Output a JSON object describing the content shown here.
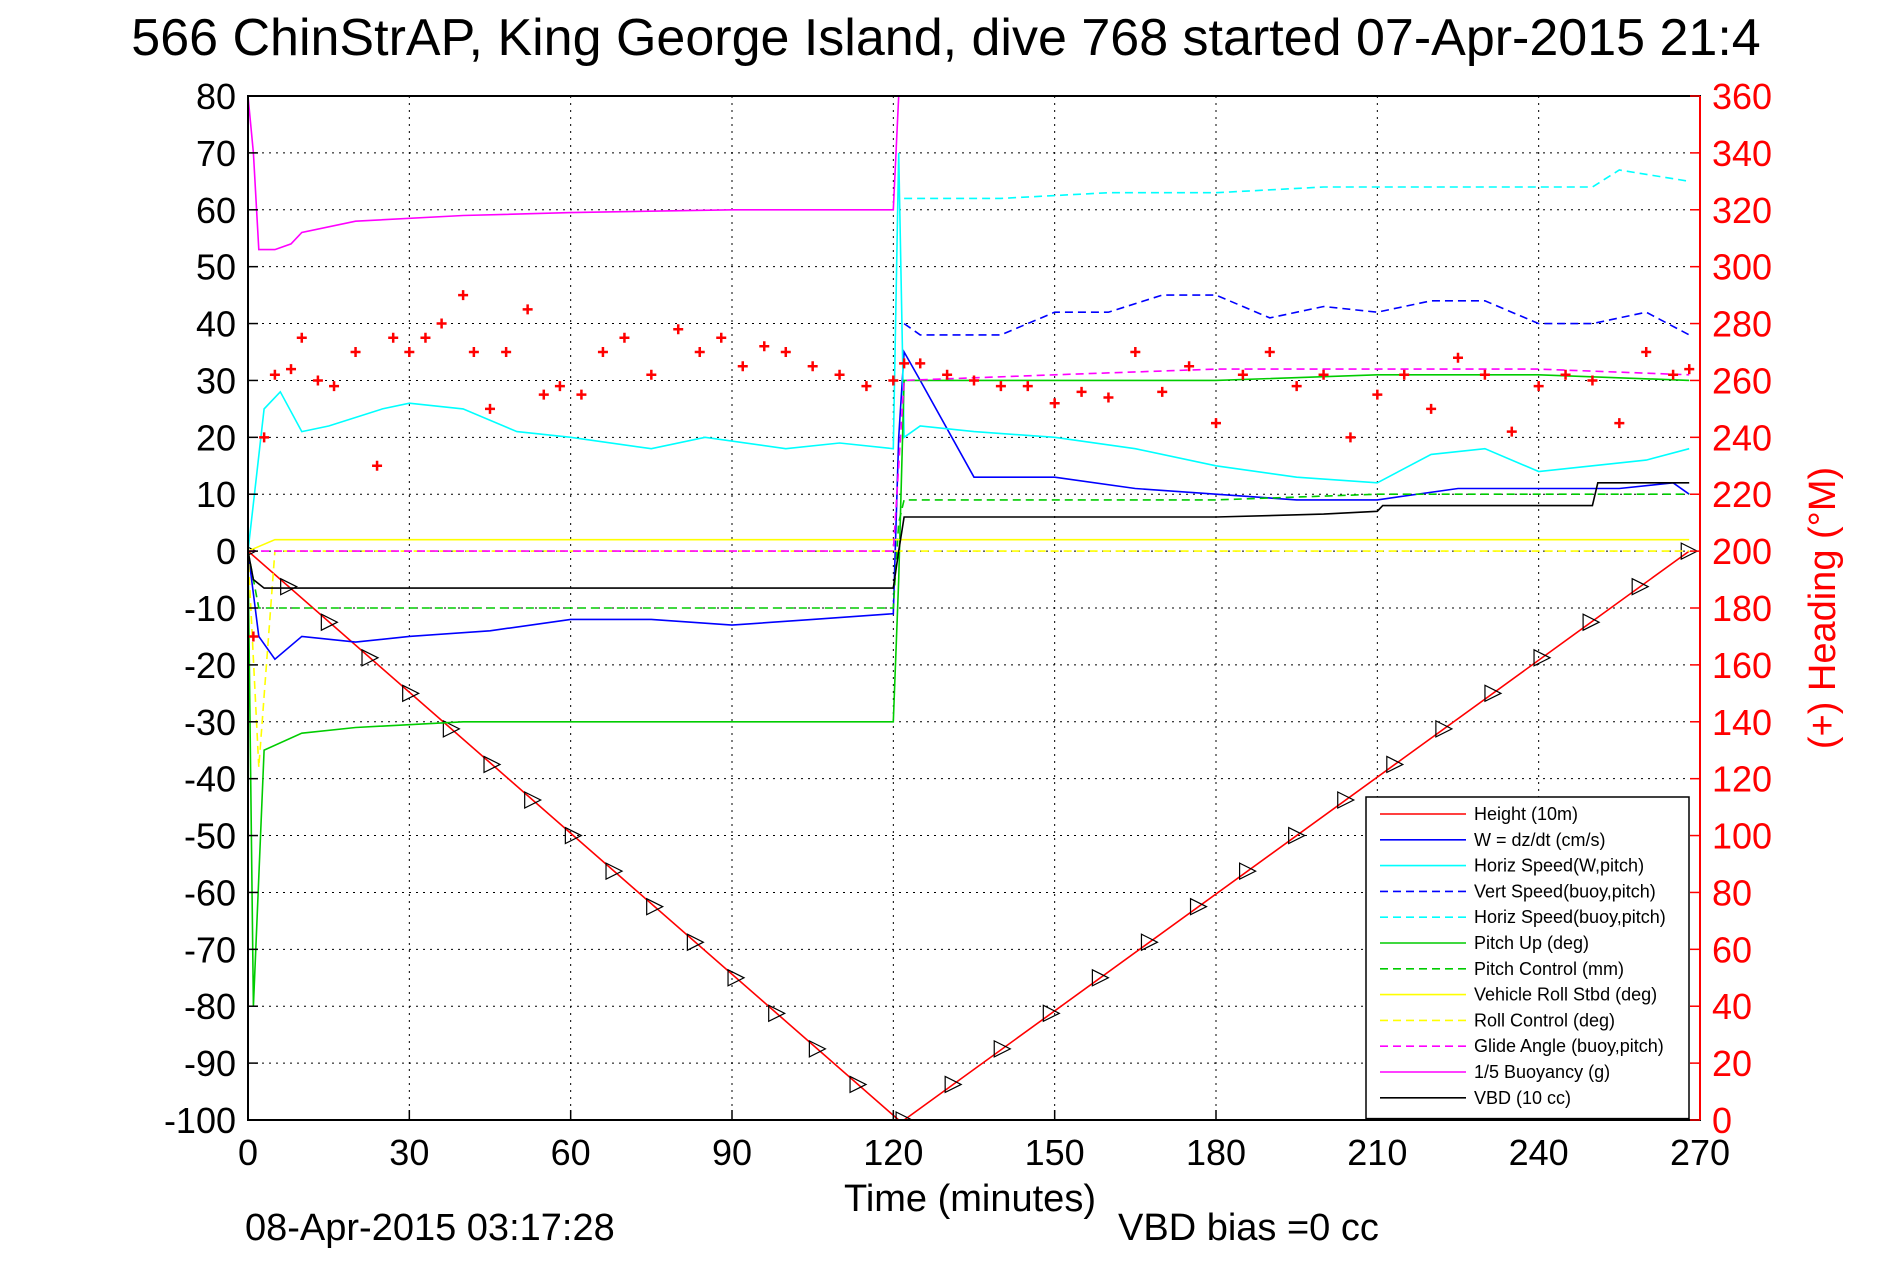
{
  "chart_data": {
    "type": "line",
    "title": "566 ChinStrAP, King George Island, dive 768 started 07-Apr-2015 21:4",
    "xlabel": "Time (minutes)",
    "ylabel": "",
    "y2label": "(+) Heading (°M)",
    "xlim": [
      0,
      270
    ],
    "ylim": [
      -100,
      80
    ],
    "y2lim": [
      0,
      360
    ],
    "xticks": [
      0,
      30,
      60,
      90,
      120,
      150,
      180,
      210,
      240,
      270
    ],
    "yticks": [
      80,
      70,
      60,
      50,
      40,
      30,
      20,
      10,
      0,
      -10,
      -20,
      -30,
      -40,
      -50,
      -60,
      -70,
      -80,
      -90,
      -100
    ],
    "y2ticks": [
      360,
      340,
      320,
      300,
      280,
      260,
      240,
      220,
      200,
      180,
      160,
      140,
      120,
      100,
      80,
      60,
      40,
      20,
      0
    ],
    "grid": true,
    "legend_position": "bottom-right",
    "footer_left": "08-Apr-2015 03:17:28",
    "footer_right": "VBD bias =0 cc",
    "series": [
      {
        "name": "Height (10m)",
        "color": "#ff0000",
        "style": "solid",
        "x": [
          0,
          121,
          122,
          268
        ],
        "y": [
          0,
          -100,
          -100,
          0
        ]
      },
      {
        "name": "W = dz/dt (cm/s)",
        "color": "#0000ff",
        "style": "solid",
        "x": [
          0,
          2,
          5,
          10,
          20,
          30,
          45,
          60,
          75,
          90,
          105,
          120,
          121,
          122,
          125,
          135,
          150,
          165,
          180,
          195,
          210,
          225,
          240,
          255,
          265,
          268
        ],
        "y": [
          0,
          -15,
          -19,
          -15,
          -16,
          -15,
          -14,
          -12,
          -12,
          -13,
          -12,
          -11,
          20,
          35,
          30,
          13,
          13,
          11,
          10,
          9,
          9,
          11,
          11,
          11,
          12,
          10
        ]
      },
      {
        "name": "Horiz Speed(W,pitch)",
        "color": "#00ffff",
        "style": "solid",
        "x": [
          0,
          3,
          6,
          10,
          15,
          25,
          30,
          40,
          50,
          60,
          75,
          85,
          100,
          110,
          120,
          121,
          122,
          125,
          135,
          150,
          165,
          180,
          195,
          210,
          220,
          230,
          240,
          250,
          260,
          268
        ],
        "y": [
          0,
          25,
          28,
          21,
          22,
          25,
          26,
          25,
          21,
          20,
          18,
          20,
          18,
          19,
          18,
          70,
          20,
          22,
          21,
          20,
          18,
          15,
          13,
          12,
          17,
          18,
          14,
          15,
          16,
          18
        ]
      },
      {
        "name": "Vert Speed(buoy,pitch)",
        "color": "#0000ff",
        "style": "dashed",
        "x": [
          122,
          125,
          140,
          150,
          160,
          170,
          180,
          190,
          200,
          210,
          220,
          230,
          240,
          250,
          260,
          268
        ],
        "y": [
          40,
          38,
          38,
          42,
          42,
          45,
          45,
          41,
          43,
          42,
          44,
          44,
          40,
          40,
          42,
          38
        ]
      },
      {
        "name": "Horiz Speed(buoy,pitch)",
        "color": "#00ffff",
        "style": "dashed",
        "x": [
          122,
          140,
          160,
          180,
          200,
          220,
          240,
          250,
          255,
          268
        ],
        "y": [
          62,
          62,
          63,
          63,
          64,
          64,
          64,
          64,
          67,
          65
        ]
      },
      {
        "name": "Pitch Up (deg)",
        "color": "#00cc00",
        "style": "solid",
        "x": [
          0,
          1,
          3,
          10,
          20,
          40,
          60,
          80,
          100,
          120,
          121,
          122,
          150,
          180,
          210,
          240,
          268
        ],
        "y": [
          0,
          -80,
          -35,
          -32,
          -31,
          -30,
          -30,
          -30,
          -30,
          -30,
          -5,
          30,
          30,
          30,
          31,
          31,
          30
        ]
      },
      {
        "name": "Pitch Control (mm)",
        "color": "#00cc00",
        "style": "dashed",
        "x": [
          0,
          2,
          120,
          121,
          122,
          140,
          150,
          180,
          210,
          240,
          268
        ],
        "y": [
          0,
          -10,
          -10,
          5,
          9,
          9,
          9,
          9,
          10,
          10,
          10
        ]
      },
      {
        "name": "Vehicle Roll Stbd (deg)",
        "color": "#ffff00",
        "style": "solid",
        "x": [
          0,
          5,
          30,
          60,
          90,
          110,
          120,
          122,
          150,
          180,
          210,
          240,
          268
        ],
        "y": [
          0,
          2,
          2,
          2,
          2,
          2,
          2,
          2,
          2,
          2,
          2,
          2,
          2
        ]
      },
      {
        "name": "Roll Control (deg)",
        "color": "#ffff00",
        "style": "dashed",
        "x": [
          0,
          2,
          5,
          120,
          122,
          268
        ],
        "y": [
          0,
          -38,
          0,
          0,
          0,
          0
        ]
      },
      {
        "name": "Glide Angle (buoy,pitch)",
        "color": "#ff00ff",
        "style": "dashed",
        "x": [
          0,
          120,
          122,
          150,
          180,
          210,
          240,
          268
        ],
        "y": [
          0,
          0,
          30,
          31,
          32,
          32,
          32,
          31
        ]
      },
      {
        "name": "1/5 Buoyancy (g)",
        "color": "#ff00ff",
        "style": "solid",
        "x": [
          0,
          1,
          2,
          5,
          8,
          10,
          20,
          40,
          60,
          90,
          120,
          121
        ],
        "y": [
          80,
          70,
          53,
          53,
          54,
          56,
          58,
          59,
          59.5,
          60,
          60,
          80
        ]
      },
      {
        "name": "VBD (10 cc)",
        "color": "#000000",
        "style": "solid",
        "x": [
          0,
          1,
          3,
          120,
          121,
          122,
          140,
          160,
          180,
          200,
          210,
          211,
          250,
          251,
          268
        ],
        "y": [
          0,
          -5,
          -6.5,
          -6.5,
          0,
          6,
          6,
          6,
          6,
          6.5,
          7,
          8,
          8,
          12,
          12
        ]
      },
      {
        "name": "Heading",
        "color": "#ff0000",
        "style": "markers",
        "axis": "right",
        "x": [
          1,
          3,
          5,
          8,
          10,
          13,
          16,
          20,
          24,
          27,
          30,
          33,
          36,
          40,
          42,
          45,
          48,
          52,
          55,
          58,
          62,
          66,
          70,
          75,
          80,
          84,
          88,
          92,
          96,
          100,
          105,
          110,
          115,
          120,
          122,
          125,
          130,
          135,
          140,
          145,
          150,
          155,
          160,
          165,
          170,
          175,
          180,
          185,
          190,
          195,
          200,
          205,
          210,
          215,
          220,
          225,
          230,
          235,
          240,
          245,
          250,
          255,
          260,
          265,
          268
        ],
        "y": [
          170,
          240,
          262,
          264,
          275,
          260,
          258,
          270,
          230,
          275,
          270,
          275,
          280,
          290,
          270,
          250,
          270,
          285,
          255,
          258,
          255,
          270,
          275,
          262,
          278,
          270,
          275,
          265,
          272,
          270,
          265,
          262,
          258,
          260,
          266,
          266,
          262,
          260,
          258,
          258,
          252,
          256,
          254,
          270,
          256,
          265,
          245,
          262,
          270,
          258,
          262,
          240,
          255,
          262,
          250,
          268,
          262,
          242,
          258,
          262,
          260,
          245,
          270,
          262,
          264
        ]
      }
    ]
  }
}
